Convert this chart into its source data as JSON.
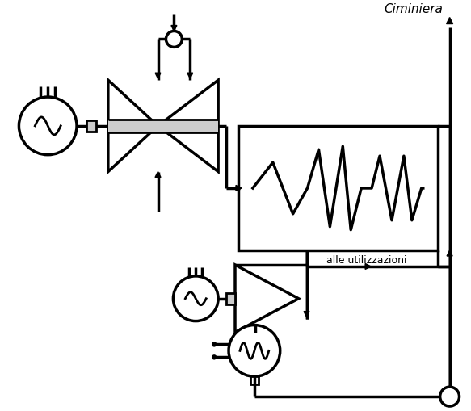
{
  "bg_color": "#ffffff",
  "line_color": "#000000",
  "gray_color": "#cccccc",
  "ciminiera_label": "Ciminiera",
  "alle_label": "alle utilizzazioni",
  "lw": 2.0,
  "lw2": 2.5,
  "arrow_size": 7
}
